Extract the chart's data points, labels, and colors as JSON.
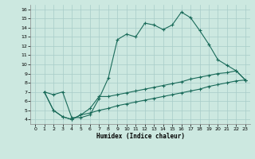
{
  "xlabel": "Humidex (Indice chaleur)",
  "xlim": [
    -0.5,
    23.5
  ],
  "ylim": [
    3.5,
    16.5
  ],
  "yticks": [
    4,
    5,
    6,
    7,
    8,
    9,
    10,
    11,
    12,
    13,
    14,
    15,
    16
  ],
  "xticks": [
    0,
    1,
    2,
    3,
    4,
    5,
    6,
    7,
    8,
    9,
    10,
    11,
    12,
    13,
    14,
    15,
    16,
    17,
    18,
    19,
    20,
    21,
    22,
    23
  ],
  "bg_color": "#cce8e0",
  "line_color": "#1a6b5a",
  "grid_color": "#a8ccc8",
  "series1_x": [
    1,
    2,
    3,
    4,
    5,
    6,
    7,
    8,
    9,
    10,
    11,
    12,
    13,
    14,
    15,
    16,
    17,
    18,
    19,
    20,
    21,
    22,
    23
  ],
  "series1_y": [
    7.0,
    6.7,
    7.0,
    4.2,
    4.2,
    4.5,
    6.3,
    8.5,
    12.7,
    13.3,
    13.0,
    14.5,
    14.3,
    13.8,
    14.3,
    15.7,
    15.1,
    13.7,
    12.2,
    10.5,
    9.9,
    9.3,
    8.3
  ],
  "series2_x": [
    1,
    2,
    3,
    4,
    5,
    6,
    7,
    8,
    9,
    10,
    11,
    12,
    13,
    14,
    15,
    16,
    17,
    18,
    19,
    20,
    21,
    22,
    23
  ],
  "series2_y": [
    7.0,
    5.0,
    4.3,
    4.0,
    4.5,
    5.2,
    6.5,
    6.5,
    6.7,
    6.9,
    7.1,
    7.3,
    7.5,
    7.7,
    7.9,
    8.1,
    8.4,
    8.6,
    8.8,
    9.0,
    9.1,
    9.3,
    8.3
  ],
  "series3_x": [
    1,
    2,
    3,
    4,
    5,
    6,
    7,
    8,
    9,
    10,
    11,
    12,
    13,
    14,
    15,
    16,
    17,
    18,
    19,
    20,
    21,
    22,
    23
  ],
  "series3_y": [
    7.0,
    5.0,
    4.3,
    4.0,
    4.5,
    4.7,
    5.0,
    5.2,
    5.5,
    5.7,
    5.9,
    6.1,
    6.3,
    6.5,
    6.7,
    6.9,
    7.1,
    7.3,
    7.6,
    7.8,
    8.0,
    8.2,
    8.3
  ]
}
